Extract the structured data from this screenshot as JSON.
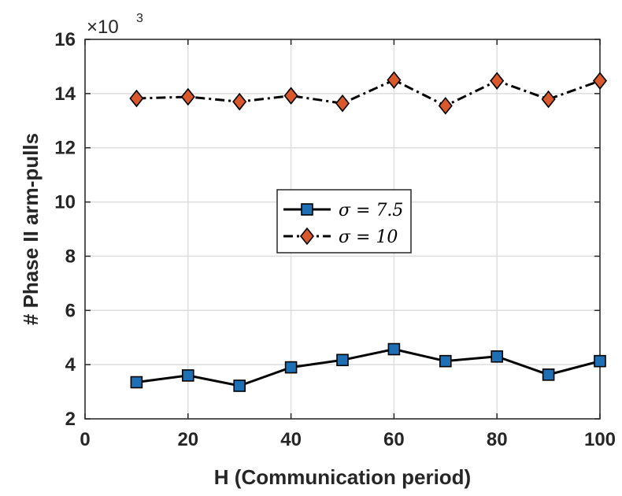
{
  "chart_data": {
    "type": "line",
    "xlabel": "H  (Communication period)",
    "ylabel": "# Phase II arm-pulls",
    "y_multiplier": "×10",
    "y_multiplier_exp": "3",
    "xlim": [
      0,
      100
    ],
    "ylim": [
      2,
      16
    ],
    "xticks": [
      0,
      20,
      40,
      60,
      80,
      100
    ],
    "yticks": [
      2,
      4,
      6,
      8,
      10,
      12,
      14,
      16
    ],
    "grid": true,
    "legend_position": "center",
    "x": [
      10,
      20,
      30,
      40,
      50,
      60,
      70,
      80,
      90,
      100
    ],
    "series": [
      {
        "name": "σ = 7.5",
        "values": [
          3.35,
          3.6,
          3.22,
          3.9,
          4.17,
          4.57,
          4.13,
          4.3,
          3.63,
          4.13
        ],
        "marker": "square",
        "line_style": "solid",
        "color": "#000000",
        "marker_fill": "#1f6fb5"
      },
      {
        "name": "σ = 10",
        "values": [
          13.82,
          13.88,
          13.7,
          13.92,
          13.64,
          14.5,
          13.55,
          14.47,
          13.79,
          14.47
        ],
        "marker": "diamond",
        "line_style": "dash-dot",
        "color": "#000000",
        "marker_fill": "#d9582c"
      }
    ]
  }
}
